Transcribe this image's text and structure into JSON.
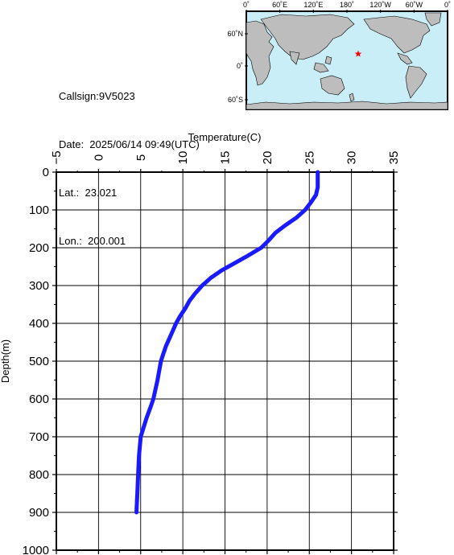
{
  "info": {
    "callsign": "Callsign:9V5023",
    "date": "Date:  2025/06/14 09:49(UTC)",
    "lat": "Lat.:  23.021",
    "lon": "Lon.:  200.001"
  },
  "map": {
    "lon_labels": [
      "0˚",
      "60˚E",
      "120˚E",
      "180˚",
      "120˚W",
      "60˚W",
      "0˚"
    ],
    "lat_labels": [
      "60˚N",
      "0˚",
      "60˚S"
    ],
    "ocean_color": "#c9eef7",
    "land_color": "#bdbdbd",
    "marker_color": "#ff0000",
    "marker_icon": "star-icon"
  },
  "chart_data": {
    "type": "line",
    "xlabel": "Temperature(C)",
    "ylabel": "Depth(m)",
    "xlim": [
      -5,
      35
    ],
    "ylim": [
      0,
      1000
    ],
    "x_ticks": [
      -5,
      0,
      5,
      10,
      15,
      20,
      25,
      30,
      35
    ],
    "y_ticks": [
      0,
      100,
      200,
      300,
      400,
      500,
      600,
      700,
      800,
      900,
      1000
    ],
    "y_inverted": true,
    "x_axis_position": "top",
    "grid": true,
    "line_color": "#1a1aff",
    "series": [
      {
        "depth": [
          0,
          20,
          40,
          60,
          80,
          100,
          120,
          140,
          160,
          180,
          200,
          220,
          240,
          260,
          280,
          300,
          320,
          340,
          360,
          380,
          400,
          420,
          440,
          460,
          480,
          500,
          550,
          600,
          620,
          650,
          700,
          750,
          800,
          850,
          900
        ],
        "temperature": [
          26.0,
          26.0,
          26.0,
          25.8,
          25.2,
          24.5,
          23.5,
          22.2,
          21.0,
          20.2,
          19.3,
          17.8,
          16.2,
          14.6,
          13.3,
          12.3,
          11.5,
          10.8,
          10.3,
          9.7,
          9.2,
          8.8,
          8.4,
          8.0,
          7.7,
          7.4,
          7.0,
          6.5,
          6.2,
          5.7,
          5.0,
          4.8,
          4.7,
          4.6,
          4.5
        ]
      }
    ]
  }
}
